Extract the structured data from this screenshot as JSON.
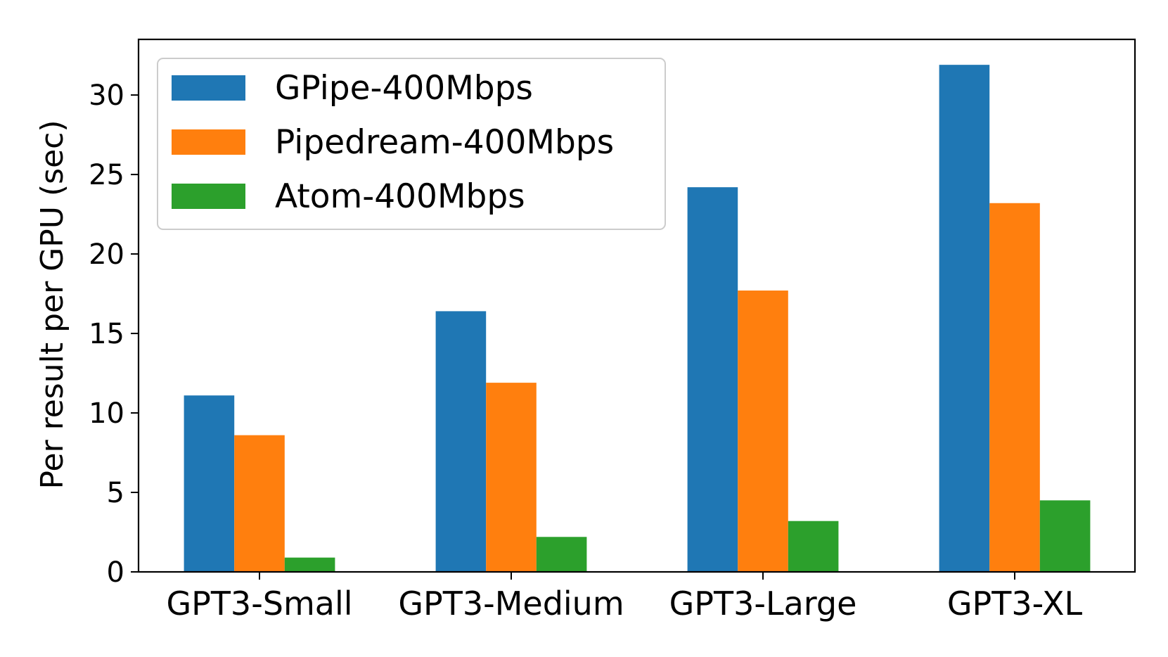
{
  "chart_data": {
    "type": "bar",
    "title": "",
    "xlabel": "",
    "ylabel": "Per result per GPU (sec)",
    "categories": [
      "GPT3-Small",
      "GPT3-Medium",
      "GPT3-Large",
      "GPT3-XL"
    ],
    "series": [
      {
        "name": "GPipe-400Mbps",
        "color": "#1f77b4",
        "values": [
          11.1,
          16.4,
          24.2,
          31.9
        ]
      },
      {
        "name": "Pipedream-400Mbps",
        "color": "#ff7f0e",
        "values": [
          8.6,
          11.9,
          17.7,
          23.2
        ]
      },
      {
        "name": "Atom-400Mbps",
        "color": "#2ca02c",
        "values": [
          0.9,
          2.2,
          3.2,
          4.5
        ]
      }
    ],
    "ylim": [
      0,
      33.5
    ],
    "yticks": [
      0,
      5,
      10,
      15,
      20,
      25,
      30
    ],
    "grid": false,
    "legend_position": "top-left"
  }
}
